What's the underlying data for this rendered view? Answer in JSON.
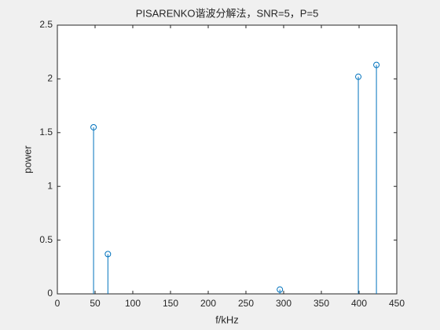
{
  "chart_data": {
    "type": "stem",
    "title": "PISARENKO谐波分解法，SNR=5，P=5",
    "xlabel": "f/kHz",
    "ylabel": "power",
    "x": [
      48,
      67,
      295,
      399,
      423
    ],
    "values": [
      1.55,
      0.37,
      0.04,
      2.02,
      2.13
    ],
    "color": "#0072bd",
    "xlim": [
      0,
      450
    ],
    "xticks": [
      0,
      50,
      100,
      150,
      200,
      250,
      300,
      350,
      400,
      450
    ],
    "ylim": [
      0,
      2.5
    ],
    "yticks": [
      0,
      0.5,
      1,
      1.5,
      2,
      2.5
    ],
    "grid": false
  }
}
